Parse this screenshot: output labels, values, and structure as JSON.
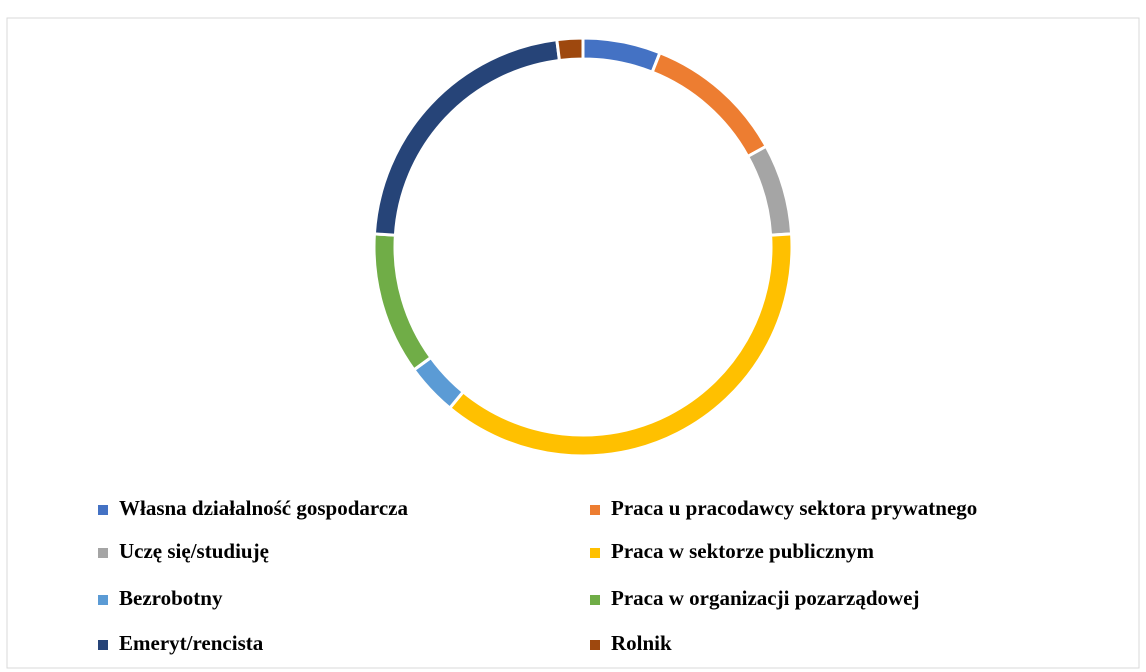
{
  "chart_data": {
    "type": "doughnut",
    "categories": [
      "Własna działalność gospodarcza",
      "Praca u pracodawcy sektora prywatnego",
      "Uczę się/studiuję",
      "Praca w sektorze publicznym",
      "Bezrobotny",
      "Praca w organizacji pozarządowej",
      "Emeryt/rencista",
      "Rolnik"
    ],
    "values": [
      6,
      11,
      7,
      37,
      4,
      11,
      22,
      2
    ],
    "colors": [
      "#4472c4",
      "#ed7d31",
      "#a5a5a5",
      "#ffc000",
      "#5b9bd5",
      "#70ad47",
      "#264478",
      "#9e480e"
    ],
    "legend": "bottom"
  }
}
